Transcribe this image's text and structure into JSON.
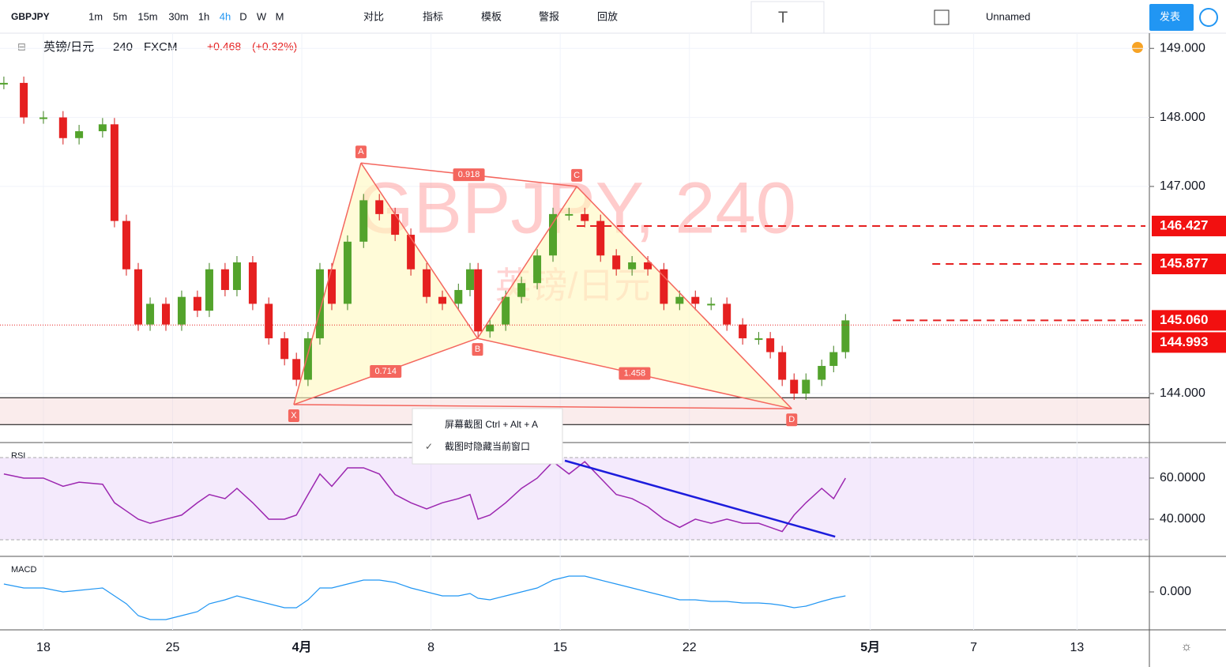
{
  "toolbar": {
    "symbol": "GBPJPY",
    "intervals": [
      "1m",
      "5m",
      "15m",
      "30m",
      "1h",
      "4h",
      "D",
      "W",
      "M"
    ],
    "tools": [
      "对比",
      "指标",
      "模板",
      "警报",
      "回放"
    ],
    "layout_name": "Unnamed",
    "publish": "发表"
  },
  "legend": {
    "name": "英镑/日元",
    "interval": "240",
    "source": "FXCM",
    "change": "+0.468",
    "change_pct": "(+0.32%)"
  },
  "context_menu": {
    "items": [
      "屏幕截图 Ctrl + Alt + A",
      "截图时隐藏当前窗口"
    ]
  },
  "chart_data": {
    "type": "candlestick",
    "watermark": [
      "GBPJPY, 240",
      "英镑/日元"
    ],
    "x": [
      -1.53,
      -0.76,
      0,
      0.76,
      1.38,
      2.29,
      2.75,
      3.21,
      3.67,
      4.13,
      4.74,
      5.35,
      5.96,
      6.42,
      7.03,
      7.49,
      8.1,
      8.72,
      9.33,
      9.79,
      10.24,
      10.7,
      11.16,
      11.77,
      12.39,
      13,
      13.61,
      14.22,
      14.83,
      15.44,
      16.06,
      16.51,
      16.82,
      17.28,
      17.89,
      18.5,
      19.11,
      19.72,
      20.34,
      20.95,
      21.56,
      22.17,
      22.78,
      23.39,
      24.01,
      24.62,
      25.23,
      25.84,
      26.45,
      27.06,
      27.68,
      28.13,
      28.59,
      29.05,
      29.51,
      30.12,
      30.58,
      31.04
    ],
    "values": [
      148.5,
      148.0,
      148.0,
      147.7,
      147.8,
      147.9,
      146.5,
      145.8,
      145.0,
      145.3,
      145.0,
      145.4,
      145.2,
      145.8,
      145.5,
      145.9,
      145.3,
      144.8,
      144.5,
      144.2,
      144.8,
      145.8,
      145.3,
      146.2,
      146.8,
      146.6,
      146.3,
      145.8,
      145.4,
      145.3,
      145.5,
      145.8,
      144.9,
      145.0,
      145.4,
      145.6,
      146.0,
      146.6,
      146.6,
      146.5,
      146.0,
      145.8,
      145.9,
      145.8,
      145.3,
      145.4,
      145.3,
      145.3,
      145.0,
      144.8,
      144.8,
      144.6,
      144.2,
      144.0,
      144.2,
      144.4,
      144.6,
      145.06
    ],
    "xlim": [
      -1.68,
      42.8
    ],
    "xticks": [
      {
        "value": 0,
        "label": "18"
      },
      {
        "value": 5,
        "label": "25"
      },
      {
        "value": 10,
        "label": "4月"
      },
      {
        "value": 15,
        "label": "8"
      },
      {
        "value": 20,
        "label": "15"
      },
      {
        "value": 25,
        "label": "22"
      },
      {
        "value": 32,
        "label": "5月"
      },
      {
        "value": 36,
        "label": "7"
      },
      {
        "value": 40,
        "label": "13"
      }
    ],
    "ylim": [
      143.29,
      149.22
    ],
    "yticks": [
      {
        "value": 149,
        "label": "149.000"
      },
      {
        "value": 148,
        "label": "148.000"
      },
      {
        "value": 147,
        "label": "147.000"
      },
      {
        "value": 144,
        "label": "144.000"
      }
    ],
    "price_levels": [
      {
        "value": 146.427,
        "from": 20.64
      },
      {
        "value": 145.877,
        "from": 34.4
      },
      {
        "value": 145.06,
        "label": "145.060",
        "from": 32.87
      },
      {
        "value": 144.993,
        "from": -1.68
      }
    ],
    "zone": [
      143.94,
      143.55
    ],
    "pattern": {
      "points": [
        {
          "label": "X",
          "x": 9.69,
          "y": 143.84
        },
        {
          "label": "A",
          "x": 12.29,
          "y": 147.34
        },
        {
          "label": "B",
          "x": 16.8,
          "y": 144.8
        },
        {
          "label": "C",
          "x": 20.64,
          "y": 147.0
        },
        {
          "label": "D",
          "x": 28.96,
          "y": 143.78
        }
      ],
      "ratios": [
        0.714,
        0.918,
        1.458
      ]
    },
    "rsi": {
      "name": "RSI",
      "values": [
        62,
        60,
        60,
        56,
        58,
        57,
        48,
        44,
        40,
        38,
        40,
        42,
        48,
        52,
        50,
        55,
        48,
        40,
        40,
        42,
        52,
        62,
        56,
        65,
        65,
        62,
        52,
        48,
        45,
        48,
        50,
        52,
        40,
        42,
        48,
        55,
        60,
        68,
        62,
        68,
        60,
        52,
        50,
        46,
        40,
        36,
        40,
        38,
        40,
        38,
        38,
        36,
        34,
        42,
        48,
        55,
        50,
        60
      ],
      "ylim": [
        21.9,
        77.3
      ],
      "yticks": [
        {
          "value": 60,
          "label": "60.0000"
        },
        {
          "value": 40,
          "label": "40.0000"
        }
      ],
      "band": [
        30,
        70
      ],
      "trend": {
        "x": [
          20.18,
          30.64
        ],
        "y": [
          68.5,
          31.5
        ]
      }
    },
    "macd": {
      "name": "MACD",
      "values": [
        0.1,
        0.05,
        0.05,
        0,
        0.02,
        0.05,
        -0.05,
        -0.15,
        -0.3,
        -0.35,
        -0.35,
        -0.3,
        -0.25,
        -0.15,
        -0.1,
        -0.05,
        -0.1,
        -0.15,
        -0.2,
        -0.2,
        -0.1,
        0.05,
        0.05,
        0.1,
        0.15,
        0.15,
        0.12,
        0.05,
        0.0,
        -0.05,
        -0.05,
        -0.02,
        -0.08,
        -0.1,
        -0.05,
        0.0,
        0.05,
        0.15,
        0.2,
        0.2,
        0.15,
        0.1,
        0.05,
        0.0,
        -0.05,
        -0.1,
        -0.1,
        -0.12,
        -0.12,
        -0.14,
        -0.14,
        -0.15,
        -0.17,
        -0.2,
        -0.18,
        -0.12,
        -0.08,
        -0.05
      ],
      "ylim": [
        -0.48,
        0.45
      ],
      "yticks": [
        {
          "value": 0,
          "label": "0.000"
        }
      ]
    }
  }
}
